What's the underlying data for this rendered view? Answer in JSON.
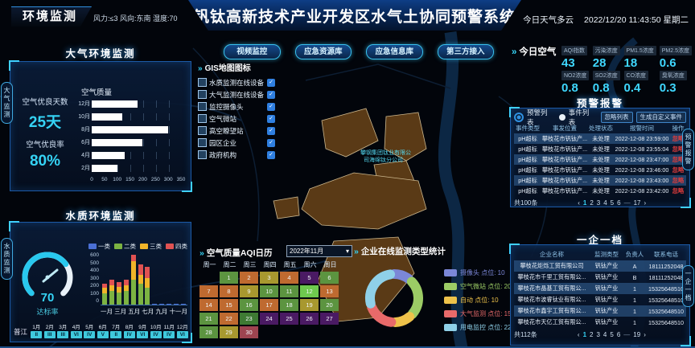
{
  "icons": {
    "double_chevron": "»",
    "check": "✓",
    "dropdown_caret": "▾",
    "pager_prev": "‹",
    "pager_next": "›"
  },
  "header": {
    "badge": "环境监测",
    "weather_left": "风力:≤3  风向:东南  湿度:70",
    "title": "钒钛高新技术产业开发区水气土协同预警系统",
    "weather_right": "今日天气多云",
    "datetime": "2022/12/20 11:43:50 星期二"
  },
  "side_tabs": {
    "left_top": "大气监测",
    "left_bottom": "水质监测",
    "right_top": "预警报警",
    "right_bottom": "一企一档"
  },
  "air_panel": {
    "title": "大气环境监测",
    "stat1_label": "空气优良天数",
    "stat1_value": "25天",
    "stat2_label": "空气优良率",
    "stat2_value": "80%",
    "chart_title": "空气质量"
  },
  "water_panel": {
    "title": "水质环境监测",
    "gauge_value": "70",
    "gauge_label": "达标率",
    "river_name": "普江",
    "months": [
      "1月",
      "2月",
      "3月",
      "4月",
      "5月",
      "6月",
      "7月",
      "8月",
      "9月",
      "10月",
      "11月",
      "12月"
    ],
    "levels": [
      "II",
      "III",
      "III",
      "VI",
      "IV",
      "V",
      "II",
      "IV",
      "VI",
      "IV",
      "IV",
      "VI"
    ]
  },
  "map_menu": {
    "buttons": [
      "视频监控",
      "应急资源库",
      "应急信息库",
      "第三方接入"
    ]
  },
  "gis": {
    "title": "GIS地图图标",
    "layers": [
      {
        "label": "水质监测在线设备",
        "checked": true
      },
      {
        "label": "大气监测在线设备",
        "checked": true
      },
      {
        "label": "监控摄像头",
        "checked": true
      },
      {
        "label": "空气微站",
        "checked": true
      },
      {
        "label": "高空瞭望站",
        "checked": true
      },
      {
        "label": "园区企业",
        "checked": true
      },
      {
        "label": "政府机构",
        "checked": true
      }
    ]
  },
  "map": {
    "label_line1": "攀钢集团钛业有限公",
    "label_line2": "司海绵钛分公司"
  },
  "today_air": {
    "title": "今日空气",
    "metrics": [
      {
        "label": "AQI指数",
        "value": "43"
      },
      {
        "label": "污染浓度",
        "value": "28"
      },
      {
        "label": "PM1.5浓度",
        "value": "18"
      },
      {
        "label": "PM2.5浓度",
        "value": "0.6"
      },
      {
        "label": "NO2浓度",
        "value": "0.8"
      },
      {
        "label": "SO2浓度",
        "value": "0.8"
      },
      {
        "label": "CO浓度",
        "value": "0.4"
      },
      {
        "label": "臭氧浓度",
        "value": "0.3"
      }
    ]
  },
  "alarm_panel": {
    "title": "预警报警",
    "radio1": "预警列表",
    "radio2": "事件列表",
    "btn_ignore": "忽略列表",
    "btn_custom": "生成自定义事件",
    "headers": [
      "事件类型",
      "事发位置",
      "处理状态",
      "报警时间",
      "操作"
    ],
    "rows": [
      [
        "pH超标",
        "攀枝花市钒钛产...",
        "未处理",
        "2022-12-08 23:59:00",
        "忽略"
      ],
      [
        "pH超标",
        "攀枝花市钒钛产...",
        "未处理",
        "2022-12-08 23:55:04",
        "忽略"
      ],
      [
        "pH超标",
        "攀枝花市钒钛产...",
        "未处理",
        "2022-12-08 23:47:00",
        "忽略"
      ],
      [
        "pH超标",
        "攀枝花市钒钛产...",
        "未处理",
        "2022-12-08 23:46:00",
        "忽略"
      ],
      [
        "pH超标",
        "攀枝花市钒钛产...",
        "未处理",
        "2022-12-08 23:43:00",
        "忽略"
      ],
      [
        "pH超标",
        "攀枝花市钒钛产...",
        "未处理",
        "2022-12-08 23:42:00",
        "忽略"
      ]
    ],
    "total": "共100条",
    "pages": [
      "1",
      "2",
      "3",
      "4",
      "5",
      "6",
      "—",
      "17"
    ],
    "current": "1"
  },
  "enterprise_panel": {
    "title": "一企一档",
    "headers": [
      "企业名称",
      "监测类型",
      "负责人",
      "联系电话"
    ],
    "rows": [
      [
        "攀枝花炬烁工贸有限公司",
        "钒钛产业",
        "A",
        "18111252048"
      ],
      [
        "攀枝花市千里工贸有限公...",
        "钒钛产业",
        "B",
        "18111252048"
      ],
      [
        "攀枝花市晶基工贸有限公...",
        "钒钛产业",
        "1",
        "15325648510"
      ],
      [
        "攀枝花市波睿钛业有限公...",
        "钒钛产业",
        "1",
        "15325648510"
      ],
      [
        "攀枝花市鑫宇工贸有限公...",
        "钒钛产业",
        "1",
        "15325648510"
      ],
      [
        "攀枝花市天亿工贸有限公...",
        "钒钛产业",
        "1",
        "15325648510"
      ]
    ],
    "total": "共112条",
    "pages": [
      "1",
      "2",
      "3",
      "4",
      "5",
      "6",
      "—",
      "19"
    ],
    "current": "1"
  },
  "chart_data": [
    {
      "type": "bar",
      "orientation": "horizontal",
      "title": "空气质量",
      "categories": [
        "12月",
        "10月",
        "8月",
        "6月",
        "4月",
        "2月"
      ],
      "values": [
        180,
        120,
        300,
        200,
        130,
        100
      ],
      "xlim": [
        0,
        350
      ],
      "xticks": [
        0,
        50,
        100,
        150,
        200,
        250,
        300,
        350
      ],
      "bar_color": "#ffffff"
    },
    {
      "type": "bar",
      "subtype": "stacked",
      "title": "水质类别月度统计",
      "categories": [
        "一月",
        "二月",
        "三月",
        "四月",
        "五月",
        "六月",
        "七月",
        "八月",
        "九月",
        "十月",
        "十一月",
        "十二月"
      ],
      "x_axis_labels_shown": [
        "一月",
        "三月",
        "五月",
        "七月",
        "九月",
        "十一月"
      ],
      "series": [
        {
          "name": "一类",
          "color": "#4a6fd4",
          "values": [
            0,
            0,
            0,
            0,
            0,
            0,
            0,
            5,
            5,
            5,
            5,
            5
          ]
        },
        {
          "name": "二类",
          "color": "#7cb342",
          "values": [
            140,
            160,
            150,
            160,
            300,
            250,
            200,
            0,
            0,
            0,
            0,
            0
          ]
        },
        {
          "name": "三类",
          "color": "#f0b429",
          "values": [
            60,
            70,
            60,
            70,
            220,
            110,
            120,
            0,
            0,
            0,
            0,
            0
          ]
        },
        {
          "name": "四类",
          "color": "#e05252",
          "values": [
            50,
            70,
            60,
            70,
            80,
            120,
            140,
            0,
            0,
            0,
            0,
            0
          ]
        }
      ],
      "ylim": [
        0,
        600
      ],
      "yticks": [
        0,
        100,
        200,
        300,
        400,
        500,
        600
      ],
      "legend_position": "top"
    },
    {
      "type": "gauge",
      "value": 70,
      "max": 100,
      "label": "达标率",
      "color": "#29c8ee"
    },
    {
      "type": "heatmap",
      "subtype": "calendar",
      "title": "空气质量AQI日历",
      "month": "2022年11月",
      "weekdays": [
        "周一",
        "周二",
        "周三",
        "周四",
        "周五",
        "周六",
        "周日"
      ],
      "start_offset": 1,
      "palette": {
        "g": "#5c9440",
        "b": "#6ec94e",
        "o": "#bf6a30",
        "y": "#a8982f",
        "p": "#4a1a63",
        "m": "#9e4450",
        "d": "#3e7a33"
      },
      "days": [
        {
          "day": 1,
          "level": "g"
        },
        {
          "day": 2,
          "level": "o"
        },
        {
          "day": 3,
          "level": "y"
        },
        {
          "day": 4,
          "level": "o"
        },
        {
          "day": 5,
          "level": "p"
        },
        {
          "day": 6,
          "level": "g"
        },
        {
          "day": 7,
          "level": "o"
        },
        {
          "day": 8,
          "level": "o"
        },
        {
          "day": 9,
          "level": "y"
        },
        {
          "day": 10,
          "level": "g"
        },
        {
          "day": 11,
          "level": "g"
        },
        {
          "day": 12,
          "level": "b"
        },
        {
          "day": 13,
          "level": "o"
        },
        {
          "day": 14,
          "level": "o"
        },
        {
          "day": 15,
          "level": "o"
        },
        {
          "day": 16,
          "level": "g"
        },
        {
          "day": 17,
          "level": "o"
        },
        {
          "day": 18,
          "level": "g"
        },
        {
          "day": 19,
          "level": "y"
        },
        {
          "day": 20,
          "level": "g"
        },
        {
          "day": 21,
          "level": "g"
        },
        {
          "day": 22,
          "level": "o"
        },
        {
          "day": 23,
          "level": "d"
        },
        {
          "day": 24,
          "level": "p"
        },
        {
          "day": 25,
          "level": "p"
        },
        {
          "day": 26,
          "level": "p"
        },
        {
          "day": 27,
          "level": "p"
        },
        {
          "day": 28,
          "level": "g"
        },
        {
          "day": 29,
          "level": "y"
        },
        {
          "day": 30,
          "level": "m"
        }
      ]
    },
    {
      "type": "pie",
      "subtype": "donut",
      "title": "企业在线监测类型统计",
      "count_prefix": "点位:",
      "slices": [
        {
          "label": "摄像头",
          "value": 10,
          "color": "#7b87d7"
        },
        {
          "label": "空气微站",
          "value": 20,
          "color": "#9ccc65"
        },
        {
          "label": "自动",
          "value": 10,
          "color": "#eec24a"
        },
        {
          "label": "大气监测",
          "value": 15,
          "color": "#e86a6a"
        },
        {
          "label": "用电监控",
          "value": 22,
          "color": "#8fd0e8"
        }
      ]
    }
  ]
}
